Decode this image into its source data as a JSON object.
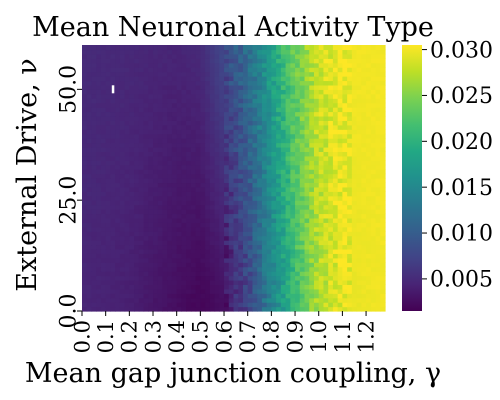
{
  "chart_data": {
    "type": "heatmap",
    "title": "Mean Neuronal Activity Type",
    "xlabel": "Mean gap junction coupling, γ",
    "ylabel": "External Drive, ν",
    "x_ticks": [
      "0.0",
      "0.1",
      "0.2",
      "0.3",
      "0.4",
      "0.5",
      "0.6",
      "0.7",
      "0.8",
      "0.9",
      "1.0",
      "1.1",
      "1.2"
    ],
    "y_ticks": [
      "0.0",
      "25.0",
      "50.0"
    ],
    "xlim": [
      0.0,
      1.28
    ],
    "ylim": [
      0.0,
      60.0
    ],
    "colorbar": {
      "colormap": "viridis",
      "ticks": [
        "0.005",
        "0.010",
        "0.015",
        "0.020",
        "0.025",
        "0.030"
      ],
      "vmin": 0.0015,
      "vmax": 0.0305
    },
    "grid": false,
    "pattern": {
      "description_x": [
        0.0,
        0.2,
        0.4,
        0.5,
        0.6,
        0.7,
        0.8,
        0.9,
        1.0,
        1.1,
        1.28
      ],
      "low_drive_values": [
        0.0045,
        0.004,
        0.0025,
        0.0018,
        0.0025,
        0.007,
        0.014,
        0.021,
        0.027,
        0.0295,
        0.03
      ],
      "high_drive_values": [
        0.005,
        0.0048,
        0.0045,
        0.005,
        0.008,
        0.012,
        0.018,
        0.024,
        0.0285,
        0.03,
        0.03
      ]
    },
    "annotation": {
      "x": 0.13,
      "y": 50.0,
      "marker": "white tick"
    }
  }
}
